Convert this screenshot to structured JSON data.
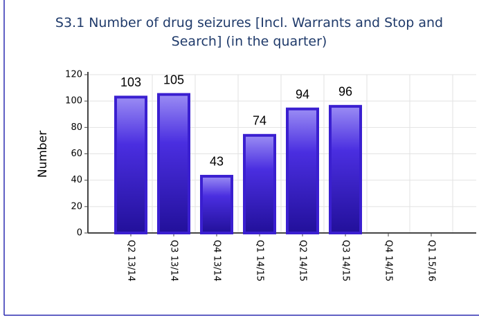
{
  "chart_data": {
    "type": "bar",
    "title": "S3.1 Number of drug seizures [Incl. Warrants and Stop and Search] (in the quarter)",
    "y_label": "Number",
    "categories": [
      "Q2 13/14",
      "Q3 13/14",
      "Q4 13/14",
      "Q1 14/15",
      "Q2 14/15",
      "Q3 14/15",
      "Q4 14/15",
      "Q1 15/16"
    ],
    "values": [
      103,
      105,
      43,
      74,
      94,
      96,
      null,
      null
    ],
    "color": "#3a1fd0",
    "ylim": [
      0,
      120
    ],
    "yticks": [
      0,
      20,
      40,
      60,
      80,
      100,
      120
    ],
    "grid": true
  }
}
